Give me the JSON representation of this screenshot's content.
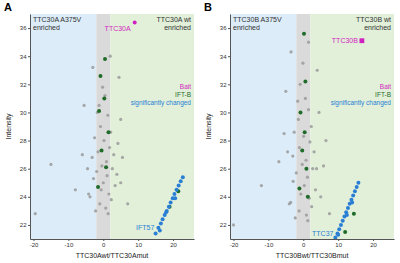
{
  "chart_data": [
    {
      "type": "scatter",
      "title": "A",
      "x_label": "TTC30Awt/TTC30Amut",
      "y_label": "Intensity",
      "xlim": [
        -21,
        26
      ],
      "ylim": [
        21,
        37
      ],
      "xticks": [
        -20,
        -10,
        0,
        10,
        20
      ],
      "yticks": [
        22,
        24,
        26,
        28,
        30,
        32,
        34,
        36
      ],
      "legend": "right",
      "regions": [
        {
          "label": "TTC30A A375V\nenriched",
          "x0": -21,
          "x1": -2,
          "color": "#dcecf8"
        },
        {
          "x0": -2,
          "x1": 2,
          "color": "#dadada"
        },
        {
          "label": "TTC30A wt\nenriched",
          "x0": 2,
          "x1": 26,
          "color": "#e2f0da"
        }
      ],
      "series": [
        {
          "color": "#9a9a9a",
          "marker": "circle",
          "x": [
            -1.2,
            0.5,
            1.3,
            -0.8,
            2.1,
            -2.5,
            0.2,
            1.8,
            -1.5,
            3.0,
            -3.2,
            0.9,
            -0.4,
            2.6,
            -1.9,
            1.1,
            -2.8,
            0,
            3.4,
            -0.6,
            1.6,
            -3.8,
            2.3,
            -1.0,
            0.7,
            -2.2,
            3.9,
            -0.2,
            1.4,
            -1.7,
            -19.5,
            -15,
            -8,
            -6,
            5,
            5,
            -5.5,
            4.5,
            -3,
            2,
            7,
            -4.5,
            4.2,
            -4.2,
            5.5
          ],
          "values": [
            30.5,
            31.2,
            29.8,
            29.0,
            28.6,
            28.2,
            28.0,
            27.5,
            27.2,
            27.0,
            26.8,
            26.5,
            26.2,
            26.0,
            25.8,
            25.5,
            25.3,
            25.0,
            24.8,
            24.5,
            24.2,
            24.0,
            23.8,
            23.5,
            23.2,
            23.0,
            25.6,
            31.8,
            22.8,
            30.0,
            22.8,
            26.3,
            24.5,
            27.0,
            29.5,
            25.0,
            30.5,
            32.5,
            33.2,
            34.0,
            23.5,
            26.0,
            27.8,
            24.2,
            26.8
          ]
        },
        {
          "name": "Bait",
          "color": "#d21fbf",
          "marker": "circle",
          "x": [
            9
          ],
          "values": [
            36.4
          ]
        },
        {
          "name": "IFT-B",
          "color": "#1f6b2a",
          "marker": "circle",
          "x": [
            0.5,
            -0.8,
            0.3,
            -1.2,
            1.5,
            -0.5,
            0.8,
            -1.5,
            19,
            21.5
          ],
          "values": [
            33.8,
            32.6,
            31.0,
            30.1,
            28.6,
            27.3,
            26.1,
            24.7,
            23.3,
            24.4
          ]
        },
        {
          "name": "significantly changed",
          "color": "#2a7fd4",
          "marker": "circle",
          "x": [
            15,
            15.8,
            16.5,
            17,
            17.6,
            18.2,
            18.8,
            19.3,
            19.9,
            20.4,
            21,
            21.6,
            22.2,
            22.8,
            16.2,
            18,
            20.6
          ],
          "values": [
            21.4,
            21.8,
            22.1,
            22.4,
            22.7,
            23,
            23.3,
            23.6,
            23.9,
            24.2,
            24.5,
            24.8,
            25.1,
            25.4,
            21.6,
            22.9,
            23.9
          ]
        }
      ],
      "annotations": [
        {
          "text": "TTC30A",
          "x": 9,
          "y": 36.4,
          "color": "#d21fbf"
        },
        {
          "text": "IFT57",
          "x": 15.8,
          "y": 21.8,
          "color": "#2a7fd4"
        }
      ]
    },
    {
      "type": "scatter",
      "title": "B",
      "x_label": "TTC30Bwt/TTC30Bmut",
      "y_label": "Intensity",
      "xlim": [
        -21,
        26
      ],
      "ylim": [
        21,
        37
      ],
      "xticks": [
        -20,
        -10,
        0,
        10,
        20
      ],
      "yticks": [
        22,
        24,
        26,
        28,
        30,
        32,
        34,
        36
      ],
      "legend": "right",
      "regions": [
        {
          "label": "TTC30B A375V\nenriched",
          "x0": -21,
          "x1": -2,
          "color": "#dcecf8"
        },
        {
          "x0": -2,
          "x1": 2,
          "color": "#dadada"
        },
        {
          "label": "TTC30B wt\nenriched",
          "x0": 2,
          "x1": 26,
          "color": "#e2f0da"
        }
      ],
      "series": [
        {
          "color": "#9a9a9a",
          "marker": "circle",
          "x": [
            -0.9,
            0.6,
            1.5,
            -1.4,
            2.3,
            -2.6,
            0.1,
            1.9,
            -1.1,
            3.1,
            -3.0,
            0.8,
            -0.3,
            2.7,
            -2.0,
            1.2,
            -2.9,
            0.3,
            3.5,
            -0.7,
            1.7,
            -3.6,
            2.4,
            -1.2,
            0.9,
            -2.3,
            3.8,
            -0.1,
            1.3,
            -1.6,
            -20,
            -12,
            -7,
            -5.5,
            6.5,
            5,
            -5,
            4,
            -3.5,
            1.5,
            7.5,
            -4.5,
            4.5,
            -4,
            5.8
          ],
          "values": [
            32.0,
            31.0,
            30.2,
            29.5,
            29.0,
            28.6,
            28.3,
            27.9,
            27.5,
            27.2,
            26.9,
            26.6,
            26.3,
            26.0,
            25.7,
            25.4,
            25.1,
            24.8,
            24.5,
            24.2,
            23.9,
            23.6,
            23.3,
            23.0,
            22.7,
            22.5,
            26.0,
            33.5,
            22.3,
            30.8,
            22.0,
            24.8,
            26.5,
            28.5,
            28.0,
            24.0,
            31.5,
            33.0,
            34.3,
            35.0,
            22.8,
            27.2,
            30.0,
            23.5,
            26.2
          ]
        },
        {
          "name": "Bait",
          "color": "#d21fbf",
          "marker": "square",
          "x": [
            16.8
          ],
          "values": [
            35.1
          ]
        },
        {
          "name": "IFT-B",
          "color": "#1f6b2a",
          "marker": "circle",
          "x": [
            0.2,
            0.6,
            -0.8,
            0.4,
            -0.3,
            0.9,
            -1.1,
            1.3,
            12,
            14.5
          ],
          "values": [
            35.6,
            32.2,
            30.0,
            28.6,
            27.3,
            26.0,
            24.6,
            24.0,
            21.5,
            22.8
          ]
        },
        {
          "name": "significantly changed",
          "color": "#2a7fd4",
          "marker": "circle",
          "x": [
            9.2,
            9.8,
            10.3,
            10.8,
            11.3,
            11.8,
            12.3,
            12.8,
            13.3,
            13.8,
            14.3,
            14.8,
            15.3,
            15.8,
            10,
            12.5,
            14
          ],
          "values": [
            21.1,
            21.4,
            21.7,
            22,
            22.3,
            22.6,
            22.9,
            23.2,
            23.5,
            23.8,
            24.1,
            24.4,
            24.7,
            25,
            21.3,
            22.7,
            23.6
          ]
        }
      ],
      "annotations": [
        {
          "text": "TTC30B",
          "x": 16.8,
          "y": 35.1,
          "color": "#d21fbf"
        },
        {
          "text": "TTC37",
          "x": 9.8,
          "y": 21.4,
          "color": "#2a7fd4"
        }
      ]
    }
  ]
}
